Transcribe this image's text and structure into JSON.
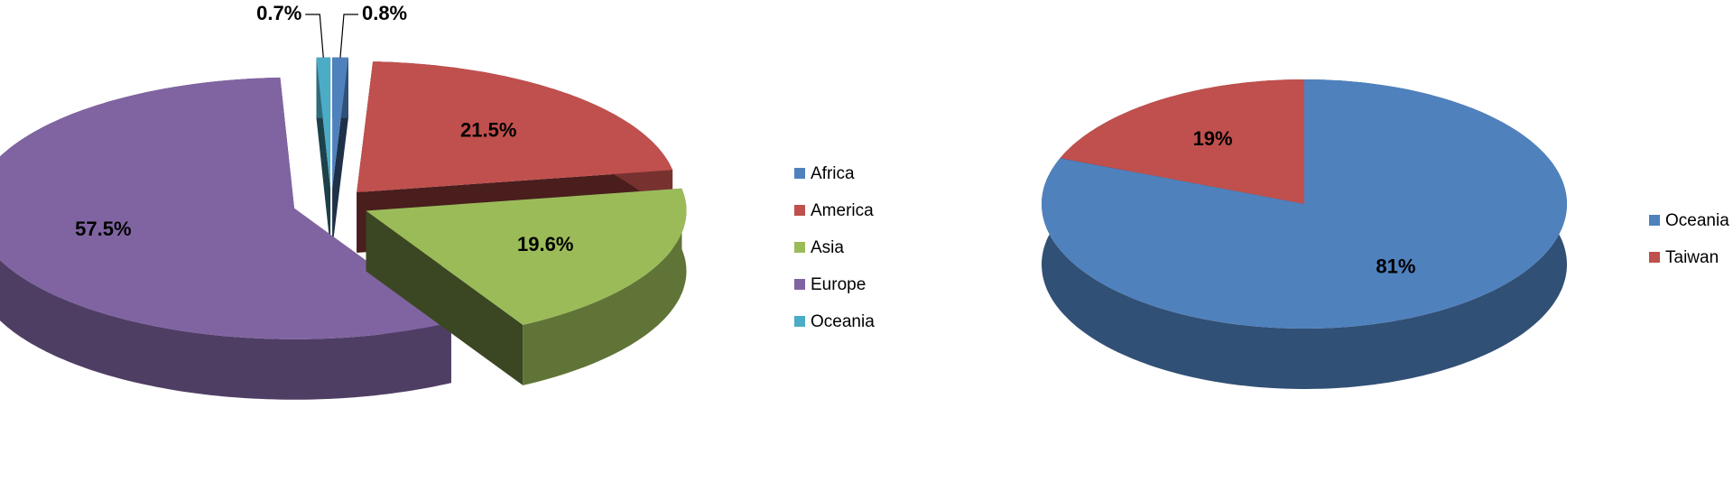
{
  "chart_data": [
    {
      "type": "pie",
      "exploded": true,
      "categories": [
        "Africa",
        "America",
        "Asia",
        "Europe",
        "Oceania"
      ],
      "values": [
        0.8,
        21.5,
        19.6,
        57.5,
        0.7
      ],
      "value_labels": [
        "0.8%",
        "21.5%",
        "19.6%",
        "57.5%",
        "0.7%"
      ],
      "colors": [
        "#4f81bd",
        "#c0504d",
        "#9bbb59",
        "#8064a2",
        "#4bacc6"
      ]
    },
    {
      "type": "pie",
      "exploded": false,
      "categories": [
        "Oceania",
        "Taiwan"
      ],
      "values": [
        81,
        19
      ],
      "value_labels": [
        "81%",
        "19%"
      ],
      "colors": [
        "#4f81bd",
        "#c0504d"
      ]
    }
  ]
}
